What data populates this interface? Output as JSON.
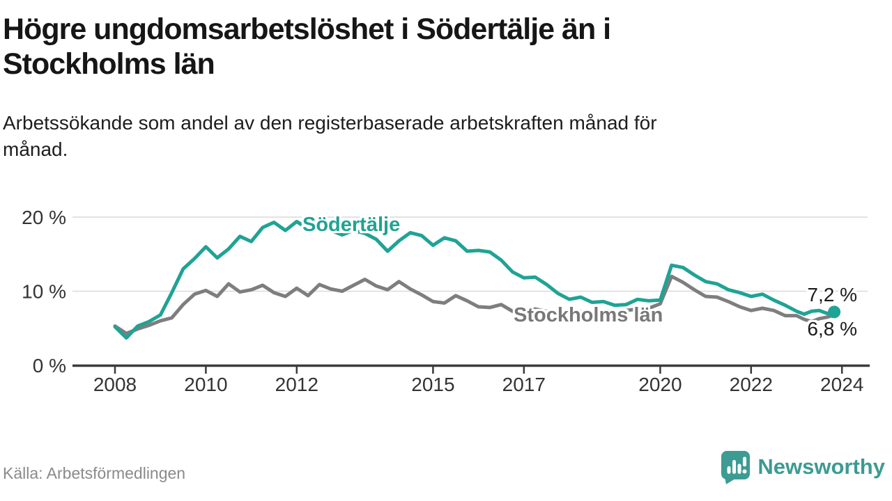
{
  "header": {
    "title_line1": "Högre ungdomsarbetslöshet i Södertälje än i",
    "title_line2": "Stockholms län",
    "subtitle_line1": "Arbetssökande som andel av den registerbaserade arbetskraften månad för",
    "subtitle_line2": "månad."
  },
  "footer": {
    "source": "Källa: Arbetsförmedlingen",
    "brand": "Newsworthy"
  },
  "colors": {
    "sodertalje_teal": "#1FA394",
    "stockholm_gray": "#7E7E7E",
    "brand_teal": "#3C9B93",
    "axis_text": "#333333",
    "gridline": "#D9D9D9",
    "axis_line": "#3B3B3B"
  },
  "chart_data": {
    "type": "line",
    "title": "Högre ungdomsarbetslöshet i Södertälje än i Stockholms län",
    "subtitle": "Arbetssökande som andel av den registerbaserade arbetskraften månad för månad.",
    "xlabel": "",
    "ylabel": "",
    "y_unit": "%",
    "x_range": [
      2008,
      2024.6
    ],
    "ylim": [
      0,
      20
    ],
    "grid": "horizontal",
    "legend_position": "inline-labels",
    "x_ticks": [
      2008,
      2010,
      2012,
      2015,
      2017,
      2020,
      2022,
      2024
    ],
    "y_ticks": [
      {
        "value": 0,
        "label": "0 %"
      },
      {
        "value": 10,
        "label": "10 %"
      },
      {
        "value": 20,
        "label": "20 %"
      }
    ],
    "x": [
      2008.0,
      2008.25,
      2008.5,
      2008.75,
      2009.0,
      2009.25,
      2009.5,
      2009.75,
      2010.0,
      2010.25,
      2010.5,
      2010.75,
      2011.0,
      2011.25,
      2011.5,
      2011.75,
      2012.0,
      2012.25,
      2012.5,
      2012.75,
      2013.0,
      2013.25,
      2013.5,
      2013.75,
      2014.0,
      2014.25,
      2014.5,
      2014.75,
      2015.0,
      2015.25,
      2015.5,
      2015.75,
      2016.0,
      2016.25,
      2016.5,
      2016.75,
      2017.0,
      2017.25,
      2017.5,
      2017.75,
      2018.0,
      2018.25,
      2018.5,
      2018.75,
      2019.0,
      2019.25,
      2019.5,
      2019.75,
      2020.0,
      2020.25,
      2020.5,
      2020.75,
      2021.0,
      2021.25,
      2021.5,
      2021.75,
      2022.0,
      2022.25,
      2022.5,
      2022.75,
      2023.0,
      2023.17,
      2023.33,
      2023.5,
      2023.67,
      2023.83
    ],
    "series": [
      {
        "name": "Södertälje",
        "color": "#1FA394",
        "end_label": "7,2 %",
        "end_value": 7.2,
        "end_dot": true,
        "values": [
          5.2,
          3.7,
          5.3,
          5.9,
          6.8,
          9.8,
          13.0,
          14.4,
          16.0,
          14.5,
          15.7,
          17.4,
          16.7,
          18.6,
          19.3,
          18.2,
          19.4,
          18.4,
          19.0,
          18.2,
          17.6,
          18.2,
          17.8,
          17.0,
          15.4,
          16.8,
          17.9,
          17.5,
          16.2,
          17.2,
          16.8,
          15.4,
          15.5,
          15.3,
          14.2,
          12.6,
          11.8,
          11.9,
          10.9,
          9.7,
          8.9,
          9.2,
          8.5,
          8.6,
          8.1,
          8.2,
          8.9,
          8.7,
          8.8,
          13.5,
          13.2,
          12.2,
          11.3,
          11.0,
          10.2,
          9.8,
          9.3,
          9.6,
          8.8,
          8.1,
          7.3,
          6.9,
          7.3,
          7.4,
          7.0,
          7.2
        ]
      },
      {
        "name": "Stockholms län",
        "color": "#7E7E7E",
        "end_label": "6,8 %",
        "end_value": 6.8,
        "end_dot": false,
        "values": [
          5.3,
          4.3,
          4.9,
          5.4,
          6.0,
          6.4,
          8.2,
          9.6,
          10.1,
          9.3,
          11.0,
          9.9,
          10.2,
          10.8,
          9.8,
          9.3,
          10.4,
          9.4,
          10.9,
          10.3,
          10.0,
          10.8,
          11.6,
          10.7,
          10.2,
          11.3,
          10.3,
          9.5,
          8.6,
          8.4,
          9.4,
          8.7,
          7.9,
          7.8,
          8.2,
          7.3,
          7.4,
          7.6,
          7.3,
          7.2,
          7.1,
          7.3,
          7.0,
          7.1,
          7.2,
          7.4,
          7.6,
          7.7,
          8.3,
          12.0,
          11.2,
          10.2,
          9.3,
          9.2,
          8.6,
          7.9,
          7.4,
          7.7,
          7.4,
          6.7,
          6.7,
          6.2,
          5.9,
          6.3,
          6.5,
          6.8
        ]
      }
    ]
  }
}
